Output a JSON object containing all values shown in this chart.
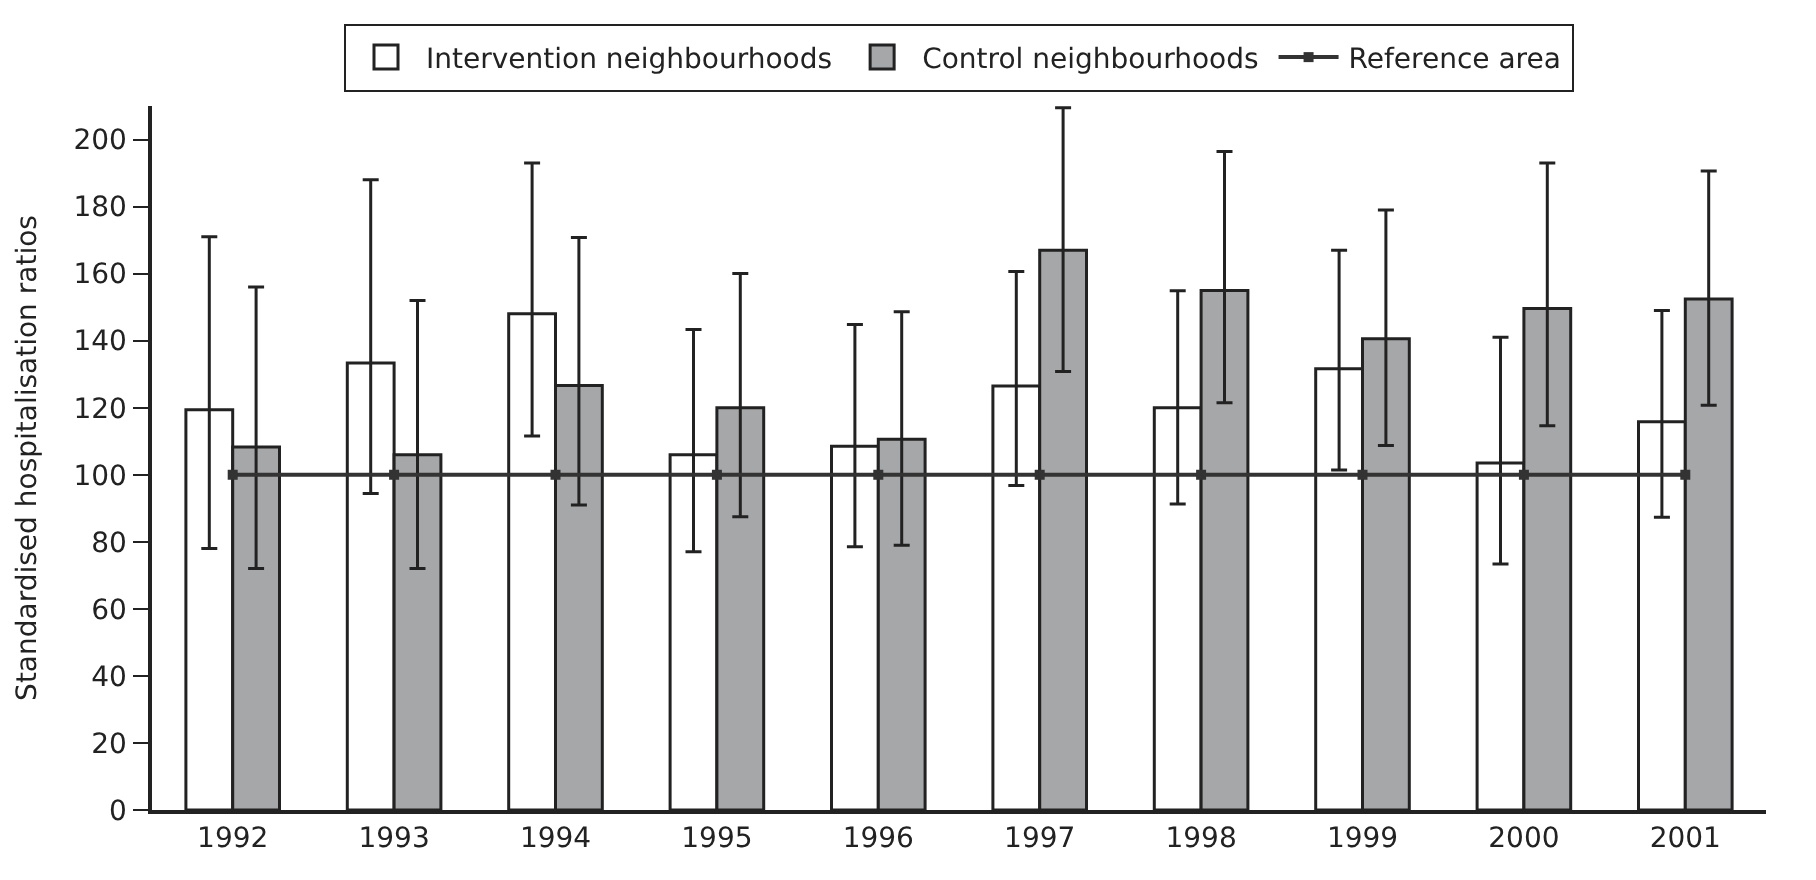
{
  "chart_data": {
    "type": "bar",
    "ylabel": "Standardised hospitalisation ratios",
    "categories": [
      "1992",
      "1993",
      "1994",
      "1995",
      "1996",
      "1997",
      "1998",
      "1999",
      "2000",
      "2001"
    ],
    "series": [
      {
        "name": "Intervention neighbourhoods",
        "color": "#ffffff",
        "values": [
          119.4,
          133.3,
          148,
          106,
          108.5,
          126.5,
          120,
          131.6,
          103.5,
          115.8
        ],
        "errors": [
          [
            78,
            171
          ],
          [
            94.4,
            188
          ],
          [
            111.6,
            193
          ],
          [
            77,
            143.3
          ],
          [
            78.5,
            144.8
          ],
          [
            96.8,
            160.6
          ],
          [
            91.3,
            154.9
          ],
          [
            101.4,
            167
          ],
          [
            73.4,
            141
          ],
          [
            87.3,
            149
          ]
        ]
      },
      {
        "name": "Control neighbourhoods",
        "color": "#a6a7a9",
        "values": [
          108.3,
          106,
          126.6,
          120,
          110.6,
          167,
          155,
          140.6,
          149.6,
          152.4
        ],
        "errors": [
          [
            72,
            156
          ],
          [
            72,
            152
          ],
          [
            91,
            170.8
          ],
          [
            87.5,
            160
          ],
          [
            79,
            148.6
          ],
          [
            130.8,
            209.5
          ],
          [
            121.5,
            196.4
          ],
          [
            108.7,
            179
          ],
          [
            114.6,
            193
          ],
          [
            120.7,
            190.6
          ]
        ]
      },
      {
        "name": "Reference area",
        "type": "line",
        "color": "#333333",
        "values": [
          100,
          100,
          100,
          100,
          100,
          100,
          100,
          100,
          100,
          100
        ]
      }
    ],
    "ylim": [
      0,
      210
    ],
    "yticks": [
      0,
      20,
      40,
      60,
      80,
      100,
      120,
      140,
      160,
      180,
      200
    ],
    "legend": "top",
    "marker": "square",
    "line_style": "solid"
  }
}
